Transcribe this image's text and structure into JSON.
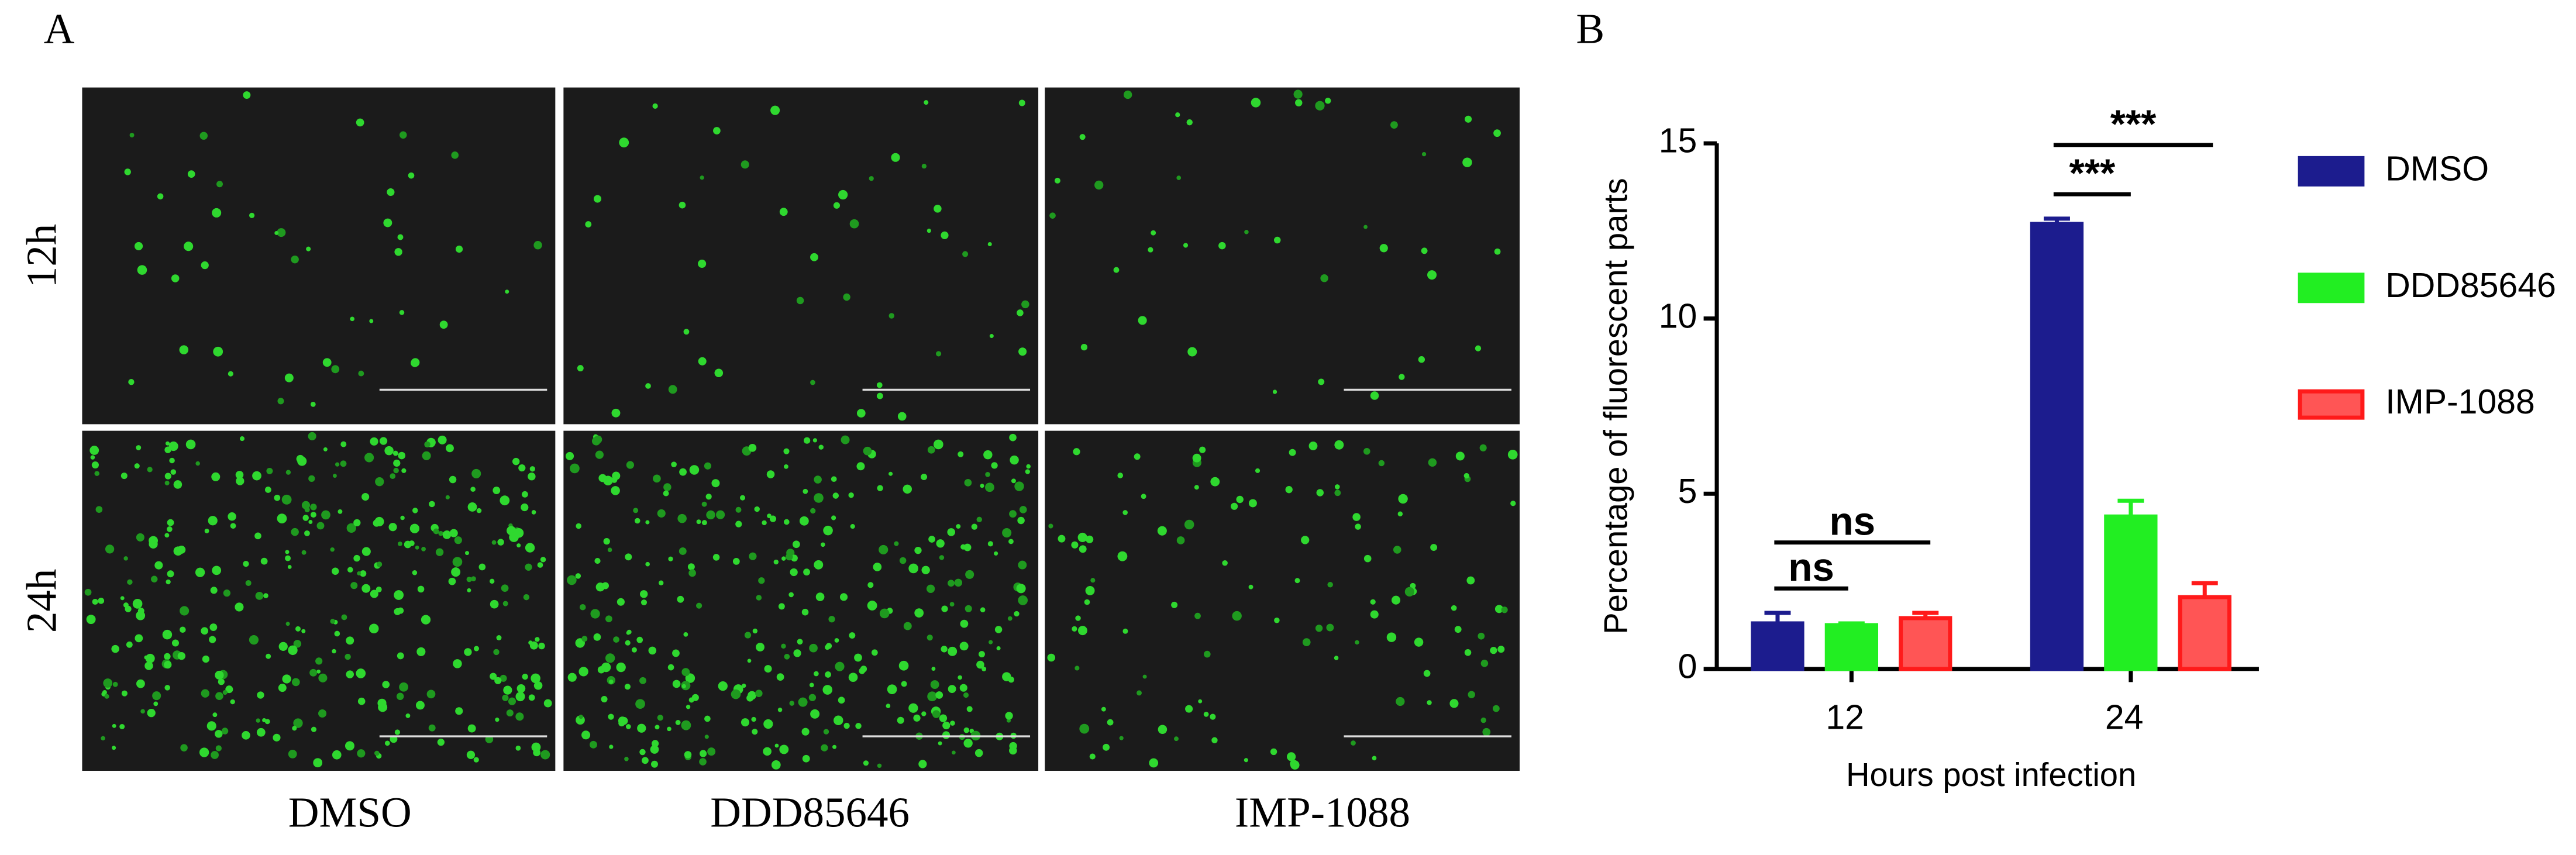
{
  "panel_a": {
    "letter": "A",
    "rows": [
      "12h",
      "24h"
    ],
    "columns": [
      "DMSO",
      "DDD85646",
      "IMP-1088"
    ]
  },
  "chart_data": {
    "type": "bar",
    "letter": "B",
    "ylabel": "Percentage of fluorescent parts",
    "xlabel": "Hours post infection",
    "categories": [
      "12",
      "24"
    ],
    "series": [
      {
        "name": "DMSO",
        "color": "#1c1c8e",
        "values": [
          1.3,
          12.7
        ],
        "errors": [
          0.3,
          0.15
        ]
      },
      {
        "name": "DDD85646",
        "color": "#22ee22",
        "values": [
          1.25,
          4.35
        ],
        "errors": [
          0.05,
          0.45
        ]
      },
      {
        "name": "IMP-1088",
        "color": "#ff5555",
        "values": [
          1.45,
          2.05
        ],
        "errors": [
          0.15,
          0.4
        ]
      }
    ],
    "ylim": [
      0,
      15
    ],
    "yticks": [
      0,
      5,
      10,
      15
    ],
    "annotations": [
      "ns",
      "ns",
      "***",
      "***"
    ],
    "legend": "right"
  }
}
